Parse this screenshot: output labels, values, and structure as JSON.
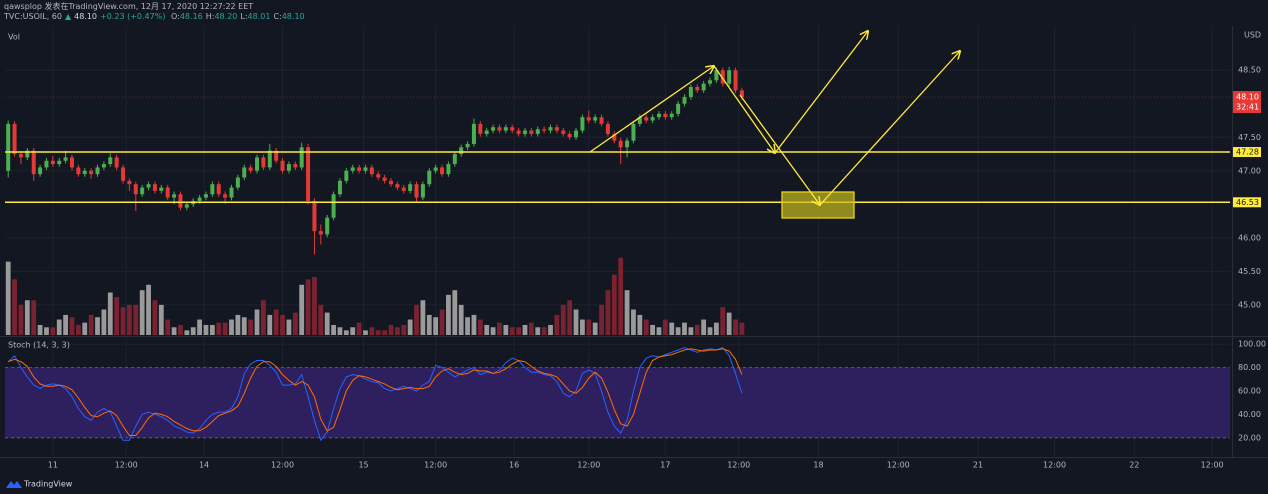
{
  "header": {
    "author_line": "qawsplop 发表在TradingView.com, 12月 17, 2020 12:27:22 EET",
    "symbol": "TVC:USOIL, 60",
    "price": "48.10",
    "change": "+0.23 (+0.47%)",
    "ohlc": [
      {
        "label": "O:",
        "value": "48.16"
      },
      {
        "label": "H:",
        "value": "48.20"
      },
      {
        "label": "L:",
        "value": "48.01"
      },
      {
        "label": "C:",
        "value": "48.10"
      }
    ]
  },
  "footer": {
    "brand": "TradingView"
  },
  "chart_data": {
    "type": "candlestick",
    "currency": "USD",
    "up_color": "#4caf50",
    "down_color": "#e53935",
    "volume_up_color": "#9a9a9a",
    "volume_down_color": "#7a2230",
    "xlim": [
      -0.5,
      191.5
    ],
    "xticks": [
      {
        "value": 7,
        "label": "11"
      },
      {
        "value": 18.5,
        "label": "12:00"
      },
      {
        "value": 30.7,
        "label": "14"
      },
      {
        "value": 43,
        "label": "12:00"
      },
      {
        "value": 55.7,
        "label": "15"
      },
      {
        "value": 67,
        "label": "12:00"
      },
      {
        "value": 79.3,
        "label": "16"
      },
      {
        "value": 91,
        "label": "12:00"
      },
      {
        "value": 103,
        "label": "17"
      },
      {
        "value": 114.5,
        "label": "12:00"
      },
      {
        "value": 127,
        "label": "18"
      },
      {
        "value": 139.5,
        "label": "12:00"
      },
      {
        "value": 152,
        "label": "21"
      },
      {
        "value": 164,
        "label": "12:00"
      },
      {
        "value": 176.5,
        "label": "22"
      },
      {
        "value": 188.7,
        "label": "12:00"
      }
    ],
    "ylim": [
      44.55,
      49.16
    ],
    "yticks": [
      {
        "value": 45,
        "label": "45.00"
      },
      {
        "value": 45.5,
        "label": "45.50"
      },
      {
        "value": 46,
        "label": "46.00"
      },
      {
        "value": 47,
        "label": "47.00"
      },
      {
        "value": 47.5,
        "label": "47.50"
      },
      {
        "value": 48.5,
        "label": "48.50"
      }
    ],
    "grid": true,
    "levels": [
      {
        "value": 47.28,
        "label": "47.28"
      },
      {
        "value": 46.53,
        "label": "46.53"
      }
    ],
    "level_color": "#ffeb3b",
    "last_price": {
      "value": 48.1,
      "label": "48.10"
    },
    "countdown": "32:41",
    "candles": [
      [
        47.0,
        47.75,
        46.9,
        47.7
      ],
      [
        47.7,
        47.74,
        47.21,
        47.25
      ],
      [
        47.25,
        47.29,
        47.1,
        47.2
      ],
      [
        47.2,
        47.34,
        47.16,
        47.3
      ],
      [
        47.3,
        47.34,
        46.85,
        46.95
      ],
      [
        46.95,
        47.09,
        46.91,
        47.05
      ],
      [
        47.05,
        47.19,
        47.01,
        47.15
      ],
      [
        47.15,
        47.22,
        47.06,
        47.1
      ],
      [
        47.1,
        47.19,
        47.06,
        47.15
      ],
      [
        47.15,
        47.3,
        47.11,
        47.2
      ],
      [
        47.2,
        47.24,
        47.01,
        47.05
      ],
      [
        47.05,
        47.09,
        46.91,
        46.95
      ],
      [
        46.95,
        47.04,
        46.91,
        47.0
      ],
      [
        47.0,
        47.04,
        46.88,
        46.95
      ],
      [
        46.95,
        47.09,
        46.91,
        47.05
      ],
      [
        47.05,
        47.14,
        47.01,
        47.1
      ],
      [
        47.1,
        47.26,
        47.06,
        47.2
      ],
      [
        47.2,
        47.24,
        47.01,
        47.05
      ],
      [
        47.05,
        47.09,
        46.81,
        46.85
      ],
      [
        46.85,
        46.89,
        46.7,
        46.8
      ],
      [
        46.8,
        46.84,
        46.4,
        46.65
      ],
      [
        46.65,
        46.79,
        46.61,
        46.75
      ],
      [
        46.75,
        46.84,
        46.71,
        46.8
      ],
      [
        46.8,
        46.84,
        46.66,
        46.7
      ],
      [
        46.7,
        46.79,
        46.66,
        46.75
      ],
      [
        46.75,
        46.79,
        46.56,
        46.6
      ],
      [
        46.6,
        46.69,
        46.5,
        46.65
      ],
      [
        46.65,
        46.69,
        46.41,
        46.45
      ],
      [
        46.45,
        46.54,
        46.41,
        46.5
      ],
      [
        46.5,
        46.59,
        46.46,
        46.55
      ],
      [
        46.55,
        46.64,
        46.51,
        46.6
      ],
      [
        46.6,
        46.69,
        46.56,
        46.65
      ],
      [
        46.65,
        46.84,
        46.61,
        46.8
      ],
      [
        46.8,
        46.84,
        46.61,
        46.65
      ],
      [
        46.65,
        46.69,
        46.51,
        46.6
      ],
      [
        46.6,
        46.79,
        46.56,
        46.75
      ],
      [
        46.75,
        46.94,
        46.71,
        46.9
      ],
      [
        46.9,
        47.09,
        46.86,
        47.05
      ],
      [
        47.05,
        47.09,
        46.96,
        47.0
      ],
      [
        47.0,
        47.24,
        46.96,
        47.2
      ],
      [
        47.2,
        47.24,
        47.01,
        47.05
      ],
      [
        47.05,
        47.4,
        47.01,
        47.3
      ],
      [
        47.3,
        47.34,
        47.11,
        47.15
      ],
      [
        47.15,
        47.19,
        46.96,
        47.0
      ],
      [
        47.0,
        47.14,
        46.96,
        47.1
      ],
      [
        47.1,
        47.14,
        47.01,
        47.05
      ],
      [
        47.05,
        47.42,
        47.01,
        47.35
      ],
      [
        47.35,
        47.4,
        46.5,
        46.55
      ],
      [
        46.55,
        46.59,
        45.75,
        46.1
      ],
      [
        46.1,
        46.2,
        45.9,
        46.05
      ],
      [
        46.05,
        46.34,
        46.01,
        46.3
      ],
      [
        46.3,
        46.69,
        46.26,
        46.65
      ],
      [
        46.65,
        46.89,
        46.61,
        46.85
      ],
      [
        46.85,
        47.04,
        46.81,
        47.0
      ],
      [
        47.0,
        47.09,
        46.96,
        47.05
      ],
      [
        47.05,
        47.09,
        46.96,
        47.0
      ],
      [
        47.0,
        47.09,
        46.96,
        47.05
      ],
      [
        47.05,
        47.09,
        46.91,
        46.95
      ],
      [
        46.95,
        46.99,
        46.86,
        46.9
      ],
      [
        46.9,
        46.94,
        46.81,
        46.85
      ],
      [
        46.85,
        46.89,
        46.76,
        46.8
      ],
      [
        46.8,
        46.84,
        46.71,
        46.75
      ],
      [
        46.75,
        46.79,
        46.66,
        46.7
      ],
      [
        46.7,
        46.84,
        46.66,
        46.8
      ],
      [
        46.8,
        46.84,
        46.53,
        46.6
      ],
      [
        46.6,
        46.84,
        46.56,
        46.8
      ],
      [
        46.8,
        47.04,
        46.76,
        47.0
      ],
      [
        47.0,
        47.09,
        46.96,
        47.05
      ],
      [
        47.05,
        47.09,
        46.91,
        46.95
      ],
      [
        46.95,
        47.14,
        46.91,
        47.1
      ],
      [
        47.1,
        47.29,
        47.06,
        47.25
      ],
      [
        47.25,
        47.39,
        47.21,
        47.35
      ],
      [
        47.35,
        47.44,
        47.31,
        47.4
      ],
      [
        47.4,
        47.78,
        47.36,
        47.7
      ],
      [
        47.7,
        47.74,
        47.51,
        47.55
      ],
      [
        47.55,
        47.64,
        47.51,
        47.6
      ],
      [
        47.6,
        47.69,
        47.56,
        47.65
      ],
      [
        47.65,
        47.69,
        47.56,
        47.6
      ],
      [
        47.6,
        47.69,
        47.56,
        47.65
      ],
      [
        47.65,
        47.69,
        47.56,
        47.6
      ],
      [
        47.6,
        47.64,
        47.51,
        47.55
      ],
      [
        47.55,
        47.64,
        47.51,
        47.6
      ],
      [
        47.6,
        47.64,
        47.51,
        47.55
      ],
      [
        47.55,
        47.66,
        47.51,
        47.62
      ],
      [
        47.62,
        47.66,
        47.56,
        47.6
      ],
      [
        47.6,
        47.69,
        47.56,
        47.65
      ],
      [
        47.65,
        47.69,
        47.56,
        47.6
      ],
      [
        47.6,
        47.64,
        47.51,
        47.55
      ],
      [
        47.55,
        47.59,
        47.46,
        47.5
      ],
      [
        47.5,
        47.64,
        47.46,
        47.6
      ],
      [
        47.6,
        47.84,
        47.56,
        47.8
      ],
      [
        47.8,
        47.9,
        47.71,
        47.75
      ],
      [
        47.75,
        47.84,
        47.71,
        47.8
      ],
      [
        47.8,
        47.84,
        47.66,
        47.7
      ],
      [
        47.7,
        47.74,
        47.51,
        47.55
      ],
      [
        47.55,
        47.59,
        47.41,
        47.45
      ],
      [
        47.45,
        47.49,
        47.1,
        47.35
      ],
      [
        47.35,
        47.49,
        47.2,
        47.45
      ],
      [
        47.45,
        47.74,
        47.41,
        47.7
      ],
      [
        47.7,
        47.84,
        47.66,
        47.8
      ],
      [
        47.8,
        47.84,
        47.71,
        47.75
      ],
      [
        47.75,
        47.84,
        47.71,
        47.8
      ],
      [
        47.8,
        47.89,
        47.76,
        47.85
      ],
      [
        47.85,
        47.89,
        47.76,
        47.8
      ],
      [
        47.8,
        47.89,
        47.76,
        47.85
      ],
      [
        47.85,
        48.04,
        47.81,
        48.0
      ],
      [
        48.0,
        48.14,
        47.96,
        48.1
      ],
      [
        48.1,
        48.29,
        48.06,
        48.25
      ],
      [
        48.25,
        48.29,
        48.16,
        48.2
      ],
      [
        48.2,
        48.34,
        48.16,
        48.3
      ],
      [
        48.3,
        48.39,
        48.26,
        48.35
      ],
      [
        48.35,
        48.54,
        48.31,
        48.5
      ],
      [
        48.5,
        48.54,
        48.26,
        48.3
      ],
      [
        48.3,
        48.55,
        48.26,
        48.5
      ],
      [
        48.5,
        48.54,
        48.16,
        48.2
      ],
      [
        48.2,
        48.24,
        48.06,
        48.1
      ]
    ],
    "volume": {
      "label": "Vol",
      "ylim": [
        0,
        400
      ],
      "values": [
        95,
        72,
        39,
        45,
        45,
        13,
        10,
        10,
        20,
        26,
        23,
        13,
        16,
        26,
        23,
        33,
        55,
        49,
        36,
        39,
        39,
        58,
        65,
        45,
        39,
        20,
        10,
        13,
        6,
        10,
        20,
        13,
        13,
        16,
        16,
        20,
        26,
        23,
        20,
        33,
        45,
        26,
        33,
        26,
        20,
        29,
        65,
        72,
        75,
        39,
        29,
        13,
        10,
        6,
        10,
        16,
        6,
        10,
        6,
        6,
        13,
        10,
        13,
        20,
        39,
        45,
        26,
        23,
        33,
        52,
        58,
        39,
        23,
        26,
        20,
        13,
        10,
        16,
        13,
        10,
        10,
        13,
        16,
        10,
        10,
        13,
        26,
        39,
        45,
        33,
        20,
        20,
        16,
        39,
        58,
        78,
        100,
        58,
        33,
        26,
        20,
        13,
        10,
        20,
        16,
        10,
        16,
        10,
        13,
        20,
        10,
        16,
        36,
        29,
        20,
        16
      ]
    },
    "stoch": {
      "title": "Stoch (14, 3, 3)",
      "ylim": [
        4.5,
        105.2
      ],
      "band": [
        20,
        80
      ],
      "band_color": "#2e1f5e",
      "yticks": [
        {
          "value": 20,
          "label": "20.00"
        },
        {
          "value": 40,
          "label": "40.00"
        },
        {
          "value": 60,
          "label": "60.00"
        },
        {
          "value": 80,
          "label": "80.00"
        },
        {
          "value": 100,
          "label": "100.00"
        }
      ],
      "series": [
        {
          "color": "#2962ff",
          "values": [
            85,
            90,
            80,
            72,
            65,
            62,
            65,
            66,
            65,
            62,
            55,
            45,
            38,
            35,
            42,
            45,
            42,
            30,
            18,
            18,
            30,
            40,
            42,
            40,
            38,
            35,
            30,
            28,
            25,
            24,
            28,
            35,
            40,
            42,
            42,
            45,
            55,
            75,
            83,
            86,
            86,
            82,
            76,
            65,
            65,
            66,
            74,
            55,
            35,
            18,
            25,
            45,
            62,
            72,
            74,
            73,
            70,
            68,
            67,
            62,
            60,
            62,
            64,
            62,
            60,
            65,
            68,
            82,
            80,
            76,
            72,
            75,
            78,
            80,
            74,
            76,
            75,
            78,
            84,
            88,
            86,
            80,
            76,
            76,
            74,
            73,
            68,
            58,
            55,
            60,
            75,
            78,
            75,
            60,
            42,
            30,
            24,
            35,
            60,
            80,
            88,
            90,
            89,
            91,
            93,
            95,
            97,
            95,
            93,
            95,
            96,
            95,
            97,
            90,
            75,
            58
          ]
        },
        {
          "color": "#ff6d00",
          "values": [
            85,
            87,
            85,
            81,
            72,
            66,
            64,
            64,
            65,
            64,
            61,
            54,
            46,
            39,
            38,
            41,
            43,
            39,
            30,
            22,
            22,
            29,
            37,
            41,
            40,
            38,
            34,
            31,
            28,
            26,
            26,
            29,
            34,
            39,
            41,
            43,
            47,
            58,
            71,
            81,
            85,
            85,
            81,
            74,
            69,
            65,
            68,
            65,
            55,
            36,
            26,
            29,
            44,
            60,
            69,
            73,
            72,
            70,
            68,
            66,
            63,
            61,
            62,
            63,
            62,
            62,
            64,
            72,
            77,
            79,
            76,
            74,
            75,
            78,
            77,
            77,
            75,
            76,
            79,
            83,
            86,
            85,
            81,
            77,
            75,
            74,
            72,
            66,
            60,
            58,
            63,
            71,
            76,
            71,
            59,
            44,
            32,
            30,
            40,
            58,
            76,
            86,
            89,
            90,
            91,
            93,
            95,
            96,
            95,
            94,
            95,
            95,
            96,
            94,
            87,
            74
          ]
        }
      ]
    }
  }
}
